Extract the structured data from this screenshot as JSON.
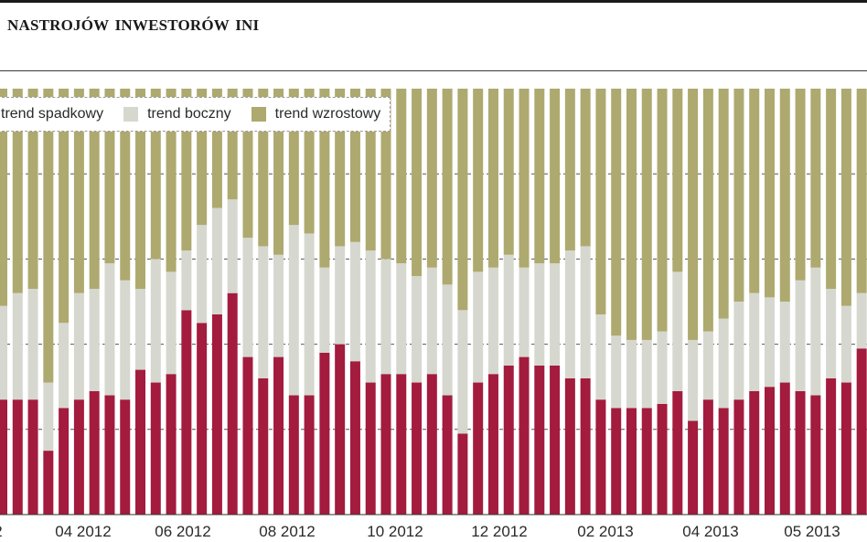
{
  "header": {
    "title": "NASTROJÓW INWESTORÓW INI"
  },
  "chart_data": {
    "type": "bar",
    "stacked": true,
    "title": "NASTROJÓW INWESTORÓW INI",
    "xlabel": "",
    "ylabel": "",
    "ylim": [
      0,
      100
    ],
    "grid": true,
    "legend_position": "top-left",
    "x_tick_labels": [
      "2",
      "04 2012",
      "06 2012",
      "08 2012",
      "10 2012",
      "12 2012",
      "02 2013",
      "04 2013",
      "05 2013"
    ],
    "series": [
      {
        "name": "trend spadkowy",
        "color": "#a31b3d",
        "values": [
          27,
          27,
          27,
          15,
          25,
          27,
          29,
          28,
          27,
          34,
          31,
          33,
          48,
          45,
          47,
          52,
          37,
          32,
          37,
          28,
          28,
          38,
          40,
          36,
          31,
          33,
          33,
          31,
          33,
          28,
          19,
          31,
          33,
          35,
          37,
          35,
          35,
          32,
          32,
          27,
          25,
          25,
          25,
          26,
          29,
          22,
          27,
          25,
          27,
          29,
          30,
          31,
          29,
          28,
          32,
          31,
          39,
          36
        ]
      },
      {
        "name": "trend boczny",
        "color": "#d6d8cf",
        "values": [
          22,
          25,
          26,
          16,
          20,
          25,
          24,
          31,
          28,
          19,
          29,
          24,
          14,
          23,
          25,
          22,
          28,
          31,
          24,
          40,
          38,
          20,
          23,
          28,
          31,
          27,
          26,
          25,
          25,
          26,
          29,
          26,
          25,
          26,
          21,
          24,
          24,
          30,
          31,
          20,
          17,
          16,
          16,
          17,
          28,
          19,
          16,
          21,
          23,
          23,
          21,
          19,
          26,
          30,
          21,
          18,
          13,
          8
        ]
      },
      {
        "name": "trend wzrostowy",
        "color": "#aea96f",
        "values": [
          51,
          48,
          47,
          69,
          55,
          48,
          47,
          41,
          45,
          47,
          40,
          43,
          38,
          32,
          28,
          26,
          35,
          37,
          39,
          32,
          34,
          42,
          37,
          36,
          38,
          40,
          41,
          44,
          42,
          46,
          52,
          43,
          42,
          39,
          42,
          41,
          41,
          38,
          37,
          53,
          58,
          59,
          59,
          57,
          43,
          59,
          57,
          54,
          50,
          48,
          49,
          50,
          45,
          42,
          47,
          51,
          48,
          56
        ]
      }
    ]
  }
}
